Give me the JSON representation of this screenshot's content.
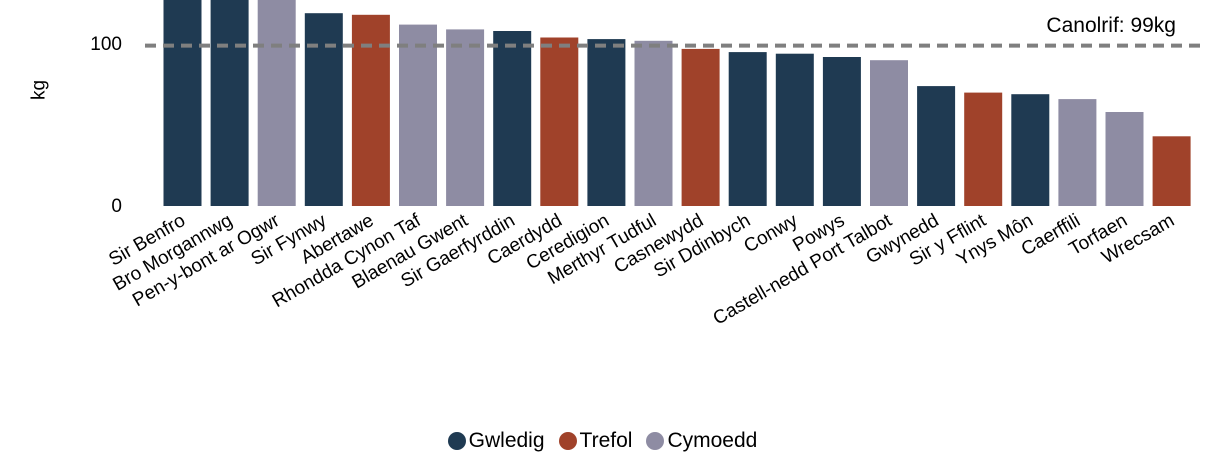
{
  "chart_data": {
    "type": "bar",
    "ylabel": "kg",
    "ylim": [
      0,
      130
    ],
    "yticks": [
      "0",
      "100"
    ],
    "categories": [
      "Sir Benfro",
      "Bro Morgannwg",
      "Pen-y-bont ar Ogwr",
      "Sir Fynwy",
      "Abertawe",
      "Rhondda Cynon Taf",
      "Blaenau Gwent",
      "Sir Gaerfyrddin",
      "Caerdydd",
      "Ceredigion",
      "Merthyr Tudful",
      "Casnewydd",
      "Sir Ddinbych",
      "Conwy",
      "Powys",
      "Castell-nedd Port Talbot",
      "Gwynedd",
      "Sir y Fflint",
      "Ynys Môn",
      "Caerffili",
      "Torfaen",
      "Wrecsam"
    ],
    "values": [
      135,
      132,
      130,
      119,
      118,
      112,
      109,
      108,
      104,
      103,
      102,
      97,
      95,
      94,
      92,
      90,
      74,
      70,
      69,
      66,
      58,
      43
    ],
    "groups": [
      "Gwledig",
      "Gwledig",
      "Cymoedd",
      "Gwledig",
      "Trefol",
      "Cymoedd",
      "Cymoedd",
      "Gwledig",
      "Trefol",
      "Gwledig",
      "Cymoedd",
      "Trefol",
      "Gwledig",
      "Gwledig",
      "Gwledig",
      "Cymoedd",
      "Gwledig",
      "Trefol",
      "Gwledig",
      "Cymoedd",
      "Cymoedd",
      "Trefol"
    ],
    "reference_line": {
      "value": 99,
      "label": "Canolrif: 99kg"
    },
    "legend": [
      {
        "name": "Gwledig",
        "color": "#1f3a52"
      },
      {
        "name": "Trefol",
        "color": "#a0422a"
      },
      {
        "name": "Cymoedd",
        "color": "#8e8ca3"
      }
    ],
    "legend_position": "bottom-center",
    "grid": false
  }
}
